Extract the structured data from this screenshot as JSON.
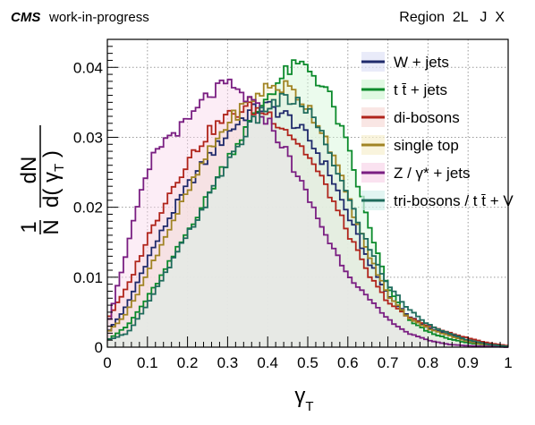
{
  "header": {
    "cms_label": "CMS",
    "cms_suffix": "work-in-progress",
    "region_label": "Region  2L   J  X"
  },
  "chart_data": {
    "type": "line",
    "style": "step-histogram, filled",
    "xlabel": "γ_T",
    "ylabel": "1/N dN/d(γ_T)",
    "xlim": [
      0,
      1
    ],
    "ylim": [
      0,
      0.044
    ],
    "grid": true,
    "legend_placement": "top-right",
    "x_ticks": [
      "0",
      "0.1",
      "0.2",
      "0.3",
      "0.4",
      "0.5",
      "0.6",
      "0.7",
      "0.8",
      "0.9",
      "1"
    ],
    "y_ticks": [
      "0",
      "0.01",
      "0.02",
      "0.03",
      "0.04"
    ],
    "bins": {
      "start": 0,
      "width": 0.01,
      "count": 100
    },
    "series": [
      {
        "name": "W + jets",
        "color": "#1f2a6b",
        "fill": "#dfe3f7",
        "shape": [
          [
            0,
            0.002
          ],
          [
            0.05,
            0.006
          ],
          [
            0.1,
            0.0125
          ],
          [
            0.15,
            0.018
          ],
          [
            0.2,
            0.023
          ],
          [
            0.25,
            0.027
          ],
          [
            0.3,
            0.0305
          ],
          [
            0.35,
            0.0335
          ],
          [
            0.4,
            0.0345
          ],
          [
            0.45,
            0.033
          ],
          [
            0.5,
            0.03
          ],
          [
            0.55,
            0.0255
          ],
          [
            0.6,
            0.019
          ],
          [
            0.65,
            0.0125
          ],
          [
            0.7,
            0.0075
          ],
          [
            0.75,
            0.0045
          ],
          [
            0.8,
            0.0028
          ],
          [
            0.85,
            0.0018
          ],
          [
            0.9,
            0.001
          ],
          [
            0.95,
            0.0004
          ],
          [
            1,
            0.0001
          ]
        ]
      },
      {
        "name": "t t̄ + jets",
        "color": "#0b8a2b",
        "fill": "#d3f7d6",
        "shape": [
          [
            0,
            0.001
          ],
          [
            0.05,
            0.003
          ],
          [
            0.1,
            0.007
          ],
          [
            0.15,
            0.0115
          ],
          [
            0.2,
            0.0165
          ],
          [
            0.25,
            0.0215
          ],
          [
            0.3,
            0.027
          ],
          [
            0.35,
            0.0315
          ],
          [
            0.4,
            0.036
          ],
          [
            0.45,
            0.0395
          ],
          [
            0.48,
            0.0403
          ],
          [
            0.5,
            0.04
          ],
          [
            0.55,
            0.0365
          ],
          [
            0.6,
            0.0285
          ],
          [
            0.65,
            0.018
          ],
          [
            0.7,
            0.0085
          ],
          [
            0.75,
            0.004
          ],
          [
            0.8,
            0.0022
          ],
          [
            0.85,
            0.0012
          ],
          [
            0.9,
            0.0006
          ],
          [
            0.95,
            0.0003
          ],
          [
            1,
            0.0001
          ]
        ]
      },
      {
        "name": "di-bosons",
        "color": "#b0241b",
        "fill": "#f7dcd8",
        "shape": [
          [
            0,
            0.004
          ],
          [
            0.05,
            0.0085
          ],
          [
            0.1,
            0.0155
          ],
          [
            0.15,
            0.0215
          ],
          [
            0.2,
            0.0265
          ],
          [
            0.25,
            0.0305
          ],
          [
            0.3,
            0.033
          ],
          [
            0.35,
            0.0342
          ],
          [
            0.4,
            0.0335
          ],
          [
            0.45,
            0.031
          ],
          [
            0.5,
            0.0275
          ],
          [
            0.55,
            0.0225
          ],
          [
            0.6,
            0.0165
          ],
          [
            0.65,
            0.0105
          ],
          [
            0.7,
            0.0065
          ],
          [
            0.75,
            0.0043
          ],
          [
            0.8,
            0.0031
          ],
          [
            0.85,
            0.0021
          ],
          [
            0.9,
            0.0013
          ],
          [
            0.95,
            0.0006
          ],
          [
            1,
            0.0002
          ]
        ]
      },
      {
        "name": "single top",
        "color": "#a18424",
        "fill": "#f6efcf",
        "shape": [
          [
            0,
            0.002
          ],
          [
            0.05,
            0.005
          ],
          [
            0.1,
            0.0105
          ],
          [
            0.15,
            0.0165
          ],
          [
            0.2,
            0.022
          ],
          [
            0.25,
            0.0275
          ],
          [
            0.3,
            0.032
          ],
          [
            0.35,
            0.035
          ],
          [
            0.4,
            0.0372
          ],
          [
            0.45,
            0.0372
          ],
          [
            0.5,
            0.0345
          ],
          [
            0.55,
            0.0295
          ],
          [
            0.6,
            0.0215
          ],
          [
            0.65,
            0.0135
          ],
          [
            0.7,
            0.0075
          ],
          [
            0.75,
            0.0043
          ],
          [
            0.8,
            0.0027
          ],
          [
            0.85,
            0.0017
          ],
          [
            0.9,
            0.0008
          ],
          [
            0.95,
            0.0003
          ],
          [
            1,
            0.0001
          ]
        ]
      },
      {
        "name": "Z / γ* + jets",
        "color": "#7a1f82",
        "fill": "#f8d6ea",
        "shape": [
          [
            0,
            0.003
          ],
          [
            0.04,
            0.012
          ],
          [
            0.08,
            0.021
          ],
          [
            0.12,
            0.028
          ],
          [
            0.16,
            0.0305
          ],
          [
            0.2,
            0.032
          ],
          [
            0.25,
            0.036
          ],
          [
            0.3,
            0.0375
          ],
          [
            0.35,
            0.0355
          ],
          [
            0.4,
            0.0325
          ],
          [
            0.45,
            0.0275
          ],
          [
            0.5,
            0.0215
          ],
          [
            0.55,
            0.0155
          ],
          [
            0.6,
            0.0105
          ],
          [
            0.65,
            0.007
          ],
          [
            0.7,
            0.004
          ],
          [
            0.75,
            0.002
          ],
          [
            0.8,
            0.001
          ],
          [
            0.85,
            0.0004
          ],
          [
            0.9,
            0.0002
          ],
          [
            0.95,
            0.0001
          ],
          [
            1,
            0.0
          ]
        ]
      },
      {
        "name": "tri-bosons / t t̄ + V",
        "color": "#1e6b5c",
        "fill": "#d6f1ec",
        "shape": [
          [
            0,
            0.001
          ],
          [
            0.05,
            0.002
          ],
          [
            0.1,
            0.006
          ],
          [
            0.15,
            0.011
          ],
          [
            0.2,
            0.016
          ],
          [
            0.25,
            0.021
          ],
          [
            0.3,
            0.0265
          ],
          [
            0.35,
            0.031
          ],
          [
            0.4,
            0.0345
          ],
          [
            0.45,
            0.0355
          ],
          [
            0.5,
            0.034
          ],
          [
            0.55,
            0.0285
          ],
          [
            0.6,
            0.0215
          ],
          [
            0.65,
            0.0145
          ],
          [
            0.7,
            0.009
          ],
          [
            0.75,
            0.0055
          ],
          [
            0.8,
            0.0033
          ],
          [
            0.85,
            0.002
          ],
          [
            0.9,
            0.001
          ],
          [
            0.95,
            0.0004
          ],
          [
            1,
            0.0001
          ]
        ]
      }
    ]
  }
}
